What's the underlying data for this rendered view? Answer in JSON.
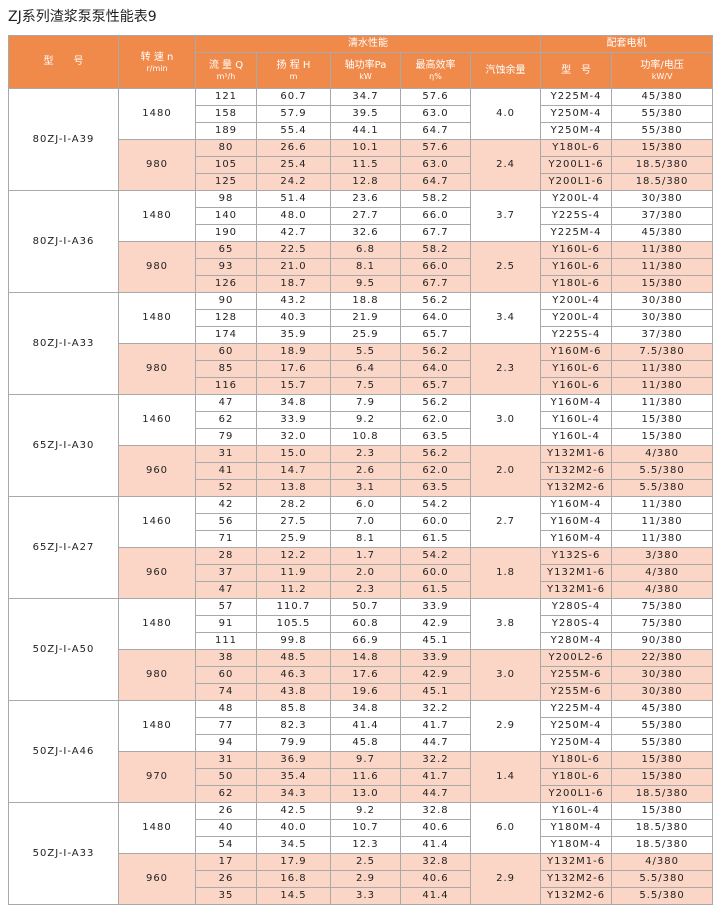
{
  "title": "ZJ系列渣浆泵泵性能表9",
  "header": {
    "model": "型　　号",
    "speed": "转 速 n",
    "speed_unit": "r/min",
    "performance": "清水性能",
    "motor": "配套电机",
    "columns": [
      {
        "label": "流 量 Q",
        "unit": "m³/h"
      },
      {
        "label": "扬 程 H",
        "unit": "m"
      },
      {
        "label": "轴功率Pa",
        "unit": "kW"
      },
      {
        "label": "最高效率",
        "unit": "η%"
      },
      {
        "label": "汽蚀余量"
      }
    ],
    "motor_columns": [
      {
        "label": "型　号"
      },
      {
        "label": "功率/电压",
        "unit": "kW/V"
      }
    ]
  },
  "pumps": [
    {
      "model": "80ZJ-I-A39",
      "groups": [
        {
          "speed": "1480",
          "npsh": "4.0",
          "rows": [
            [
              "121",
              "60.7",
              "34.7",
              "57.6",
              "Y225M-4",
              "45/380"
            ],
            [
              "158",
              "57.9",
              "39.5",
              "63.0",
              "Y250M-4",
              "55/380"
            ],
            [
              "189",
              "55.4",
              "44.1",
              "64.7",
              "Y250M-4",
              "55/380"
            ]
          ]
        },
        {
          "speed": "980",
          "npsh": "2.4",
          "rows": [
            [
              "80",
              "26.6",
              "10.1",
              "57.6",
              "Y180L-6",
              "15/380"
            ],
            [
              "105",
              "25.4",
              "11.5",
              "63.0",
              "Y200L1-6",
              "18.5/380"
            ],
            [
              "125",
              "24.2",
              "12.8",
              "64.7",
              "Y200L1-6",
              "18.5/380"
            ]
          ]
        }
      ]
    },
    {
      "model": "80ZJ-I-A36",
      "groups": [
        {
          "speed": "1480",
          "npsh": "3.7",
          "rows": [
            [
              "98",
              "51.4",
              "23.6",
              "58.2",
              "Y200L-4",
              "30/380"
            ],
            [
              "140",
              "48.0",
              "27.7",
              "66.0",
              "Y225S-4",
              "37/380"
            ],
            [
              "190",
              "42.7",
              "32.6",
              "67.7",
              "Y225M-4",
              "45/380"
            ]
          ]
        },
        {
          "speed": "980",
          "npsh": "2.5",
          "rows": [
            [
              "65",
              "22.5",
              "6.8",
              "58.2",
              "Y160L-6",
              "11/380"
            ],
            [
              "93",
              "21.0",
              "8.1",
              "66.0",
              "Y160L-6",
              "11/380"
            ],
            [
              "126",
              "18.7",
              "9.5",
              "67.7",
              "Y180L-6",
              "15/380"
            ]
          ]
        }
      ]
    },
    {
      "model": "80ZJ-I-A33",
      "groups": [
        {
          "speed": "1480",
          "npsh": "3.4",
          "rows": [
            [
              "90",
              "43.2",
              "18.8",
              "56.2",
              "Y200L-4",
              "30/380"
            ],
            [
              "128",
              "40.3",
              "21.9",
              "64.0",
              "Y200L-4",
              "30/380"
            ],
            [
              "174",
              "35.9",
              "25.9",
              "65.7",
              "Y225S-4",
              "37/380"
            ]
          ]
        },
        {
          "speed": "980",
          "npsh": "2.3",
          "rows": [
            [
              "60",
              "18.9",
              "5.5",
              "56.2",
              "Y160M-6",
              "7.5/380"
            ],
            [
              "85",
              "17.6",
              "6.4",
              "64.0",
              "Y160L-6",
              "11/380"
            ],
            [
              "116",
              "15.7",
              "7.5",
              "65.7",
              "Y160L-6",
              "11/380"
            ]
          ]
        }
      ]
    },
    {
      "model": "65ZJ-I-A30",
      "groups": [
        {
          "speed": "1460",
          "npsh": "3.0",
          "rows": [
            [
              "47",
              "34.8",
              "7.9",
              "56.2",
              "Y160M-4",
              "11/380"
            ],
            [
              "62",
              "33.9",
              "9.2",
              "62.0",
              "Y160L-4",
              "15/380"
            ],
            [
              "79",
              "32.0",
              "10.8",
              "63.5",
              "Y160L-4",
              "15/380"
            ]
          ]
        },
        {
          "speed": "960",
          "npsh": "2.0",
          "rows": [
            [
              "31",
              "15.0",
              "2.3",
              "56.2",
              "Y132M1-6",
              "4/380"
            ],
            [
              "41",
              "14.7",
              "2.6",
              "62.0",
              "Y132M2-6",
              "5.5/380"
            ],
            [
              "52",
              "13.8",
              "3.1",
              "63.5",
              "Y132M2-6",
              "5.5/380"
            ]
          ]
        }
      ]
    },
    {
      "model": "65ZJ-I-A27",
      "groups": [
        {
          "speed": "1460",
          "npsh": "2.7",
          "rows": [
            [
              "42",
              "28.2",
              "6.0",
              "54.2",
              "Y160M-4",
              "11/380"
            ],
            [
              "56",
              "27.5",
              "7.0",
              "60.0",
              "Y160M-4",
              "11/380"
            ],
            [
              "71",
              "25.9",
              "8.1",
              "61.5",
              "Y160M-4",
              "11/380"
            ]
          ]
        },
        {
          "speed": "960",
          "npsh": "1.8",
          "rows": [
            [
              "28",
              "12.2",
              "1.7",
              "54.2",
              "Y132S-6",
              "3/380"
            ],
            [
              "37",
              "11.9",
              "2.0",
              "60.0",
              "Y132M1-6",
              "4/380"
            ],
            [
              "47",
              "11.2",
              "2.3",
              "61.5",
              "Y132M1-6",
              "4/380"
            ]
          ]
        }
      ]
    },
    {
      "model": "50ZJ-I-A50",
      "groups": [
        {
          "speed": "1480",
          "npsh": "3.8",
          "rows": [
            [
              "57",
              "110.7",
              "50.7",
              "33.9",
              "Y280S-4",
              "75/380"
            ],
            [
              "91",
              "105.5",
              "60.8",
              "42.9",
              "Y280S-4",
              "75/380"
            ],
            [
              "111",
              "99.8",
              "66.9",
              "45.1",
              "Y280M-4",
              "90/380"
            ]
          ]
        },
        {
          "speed": "980",
          "npsh": "3.0",
          "rows": [
            [
              "38",
              "48.5",
              "14.8",
              "33.9",
              "Y200L2-6",
              "22/380"
            ],
            [
              "60",
              "46.3",
              "17.6",
              "42.9",
              "Y255M-6",
              "30/380"
            ],
            [
              "74",
              "43.8",
              "19.6",
              "45.1",
              "Y255M-6",
              "30/380"
            ]
          ]
        }
      ]
    },
    {
      "model": "50ZJ-I-A46",
      "groups": [
        {
          "speed": "1480",
          "npsh": "2.9",
          "rows": [
            [
              "48",
              "85.8",
              "34.8",
              "32.2",
              "Y225M-4",
              "45/380"
            ],
            [
              "77",
              "82.3",
              "41.4",
              "41.7",
              "Y250M-4",
              "55/380"
            ],
            [
              "94",
              "79.9",
              "45.8",
              "44.7",
              "Y250M-4",
              "55/380"
            ]
          ]
        },
        {
          "speed": "970",
          "npsh": "1.4",
          "rows": [
            [
              "31",
              "36.9",
              "9.7",
              "32.2",
              "Y180L-6",
              "15/380"
            ],
            [
              "50",
              "35.4",
              "11.6",
              "41.7",
              "Y180L-6",
              "15/380"
            ],
            [
              "62",
              "34.3",
              "13.0",
              "44.7",
              "Y200L1-6",
              "18.5/380"
            ]
          ]
        }
      ]
    },
    {
      "model": "50ZJ-I-A33",
      "groups": [
        {
          "speed": "1480",
          "npsh": "6.0",
          "rows": [
            [
              "26",
              "42.5",
              "9.2",
              "32.8",
              "Y160L-4",
              "15/380"
            ],
            [
              "40",
              "40.0",
              "10.7",
              "40.6",
              "Y180M-4",
              "18.5/380"
            ],
            [
              "54",
              "34.5",
              "12.3",
              "41.4",
              "Y180M-4",
              "18.5/380"
            ]
          ]
        },
        {
          "speed": "960",
          "npsh": "2.9",
          "rows": [
            [
              "17",
              "17.9",
              "2.5",
              "32.8",
              "Y132M1-6",
              "4/380"
            ],
            [
              "26",
              "16.8",
              "2.9",
              "40.6",
              "Y132M2-6",
              "5.5/380"
            ],
            [
              "35",
              "14.5",
              "3.3",
              "41.4",
              "Y132M2-6",
              "5.5/380"
            ]
          ]
        }
      ]
    }
  ]
}
